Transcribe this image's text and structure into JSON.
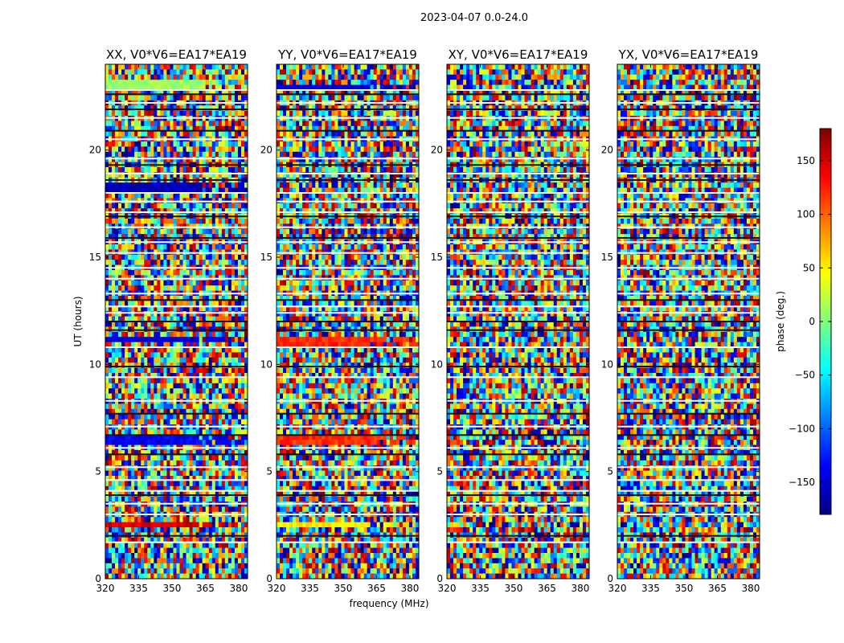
{
  "chart_data": {
    "type": "heatmap",
    "suptitle": "2023-04-07 0.0-24.0",
    "xlabel": "frequency (MHz)",
    "ylabel": "UT (hours)",
    "xlim": [
      320,
      384
    ],
    "ylim": [
      0,
      24
    ],
    "xticks": [
      "320",
      "335",
      "350",
      "365",
      "380"
    ],
    "xtick_values": [
      320,
      335,
      350,
      365,
      380
    ],
    "yticks": [
      "0",
      "5",
      "10",
      "15",
      "20"
    ],
    "ytick_values": [
      0,
      5,
      10,
      15,
      20
    ],
    "colorbar": {
      "label": "phase (deg.)",
      "range": [
        -180,
        180
      ],
      "ticks": [
        "−150",
        "−100",
        "−50",
        "0",
        "50",
        "100",
        "150"
      ],
      "tick_values": [
        -150,
        -100,
        -50,
        0,
        50,
        100,
        150
      ],
      "colormap": "jet",
      "colors": [
        "#00007f",
        "#0000ff",
        "#007fff",
        "#00ffff",
        "#7fff7f",
        "#ffff00",
        "#ff7f00",
        "#ff0000",
        "#7f0000"
      ]
    },
    "panels": [
      {
        "title": "XX, V0*V6=EA17*EA19",
        "bands": [
          {
            "t": 2.5,
            "phase": 150
          },
          {
            "t": 6.5,
            "phase": -140
          },
          {
            "t": 11.2,
            "phase": -150
          },
          {
            "t": 18.3,
            "phase": -160
          },
          {
            "t": 23.0,
            "phase": 10
          }
        ]
      },
      {
        "title": "YY, V0*V6=EA17*EA19",
        "bands": [
          {
            "t": 2.55,
            "phase": 50
          },
          {
            "t": 6.5,
            "phase": 120
          },
          {
            "t": 11.0,
            "phase": 120
          },
          {
            "t": 22.9,
            "phase": -150
          }
        ]
      },
      {
        "title": "XY, V0*V6=EA17*EA19",
        "bands": []
      },
      {
        "title": "YX, V0*V6=EA17*EA19",
        "bands": []
      }
    ]
  }
}
